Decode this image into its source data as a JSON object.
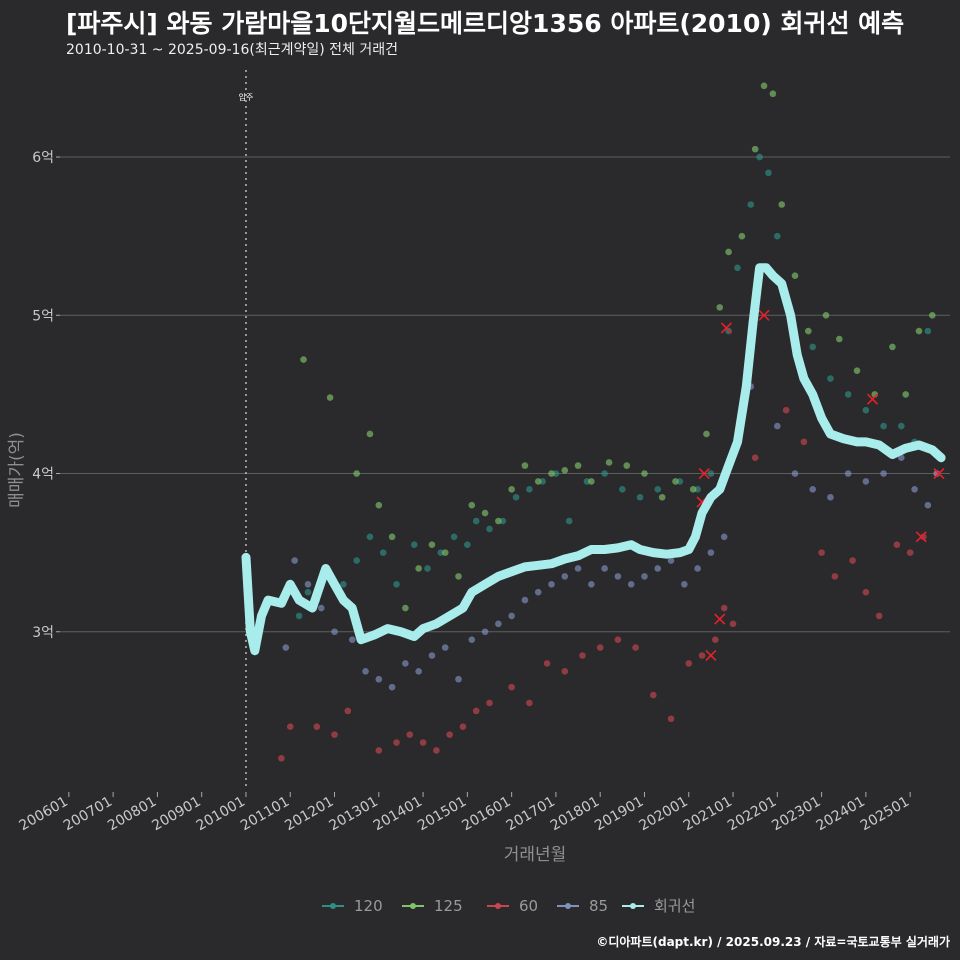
{
  "title": "[파주시] 와동 가람마을10단지월드메르디앙1356 아파트(2010) 회귀선 예측",
  "subtitle": "2010-10-31 ~ 2025-09-16(최근계약일) 전체 거래건",
  "caption": "©디아파트(dapt.kr) / 2025.09.23 / 자료=국토교통부 실거래가",
  "colors": {
    "background": "#2a2a2c",
    "grid": "#5e5e5e",
    "s120": "#2f8f86",
    "s125": "#7fc36a",
    "s60": "#c8464e",
    "s85": "#7f92be",
    "regression": "#a8ecec",
    "marker_x": "#e8202a"
  },
  "chart_data": {
    "type": "scatter",
    "title": "[파주시] 와동 가람마을10단지월드메르디앙1356 아파트(2010) 회귀선 예측",
    "xlabel": "거래년월",
    "ylabel": "매매가(억)",
    "xlim": [
      2005.8,
      2025.9
    ],
    "ylim": [
      2.0,
      6.55
    ],
    "x_ticks": [
      "200601",
      "200701",
      "200801",
      "200901",
      "201001",
      "201101",
      "201201",
      "201301",
      "201401",
      "201501",
      "201601",
      "201701",
      "201801",
      "201901",
      "202001",
      "202101",
      "202201",
      "202301",
      "202401",
      "202501"
    ],
    "x_tick_values": [
      2006,
      2007,
      2008,
      2009,
      2010,
      2011,
      2012,
      2013,
      2014,
      2015,
      2016,
      2017,
      2018,
      2019,
      2020,
      2021,
      2022,
      2023,
      2024,
      2025
    ],
    "y_ticks": [
      "3억",
      "4억",
      "5억",
      "6억"
    ],
    "y_tick_values": [
      3,
      4,
      5,
      6
    ],
    "vline": {
      "x": 2010.0,
      "label": "입주"
    },
    "legend": [
      "120",
      "125",
      "60",
      "85",
      "회귀선"
    ],
    "series": [
      {
        "name": "120",
        "points": [
          [
            2011.2,
            3.1
          ],
          [
            2011.4,
            3.25
          ],
          [
            2011.6,
            3.2
          ],
          [
            2011.8,
            3.35
          ],
          [
            2012.2,
            3.3
          ],
          [
            2012.5,
            3.45
          ],
          [
            2012.8,
            3.6
          ],
          [
            2013.1,
            3.5
          ],
          [
            2013.4,
            3.3
          ],
          [
            2013.8,
            3.55
          ],
          [
            2014.1,
            3.4
          ],
          [
            2014.4,
            3.5
          ],
          [
            2014.7,
            3.6
          ],
          [
            2015.0,
            3.55
          ],
          [
            2015.2,
            3.7
          ],
          [
            2015.5,
            3.65
          ],
          [
            2015.8,
            3.7
          ],
          [
            2016.1,
            3.85
          ],
          [
            2016.4,
            3.9
          ],
          [
            2016.7,
            3.95
          ],
          [
            2017.0,
            4.0
          ],
          [
            2017.3,
            3.7
          ],
          [
            2017.7,
            3.95
          ],
          [
            2018.1,
            4.0
          ],
          [
            2018.5,
            3.9
          ],
          [
            2018.9,
            3.85
          ],
          [
            2019.3,
            3.9
          ],
          [
            2019.8,
            3.95
          ],
          [
            2020.2,
            3.9
          ],
          [
            2020.5,
            4.0
          ],
          [
            2020.9,
            4.9
          ],
          [
            2021.1,
            5.3
          ],
          [
            2021.4,
            5.7
          ],
          [
            2021.6,
            6.0
          ],
          [
            2021.8,
            5.9
          ],
          [
            2022.0,
            5.5
          ],
          [
            2022.3,
            5.0
          ],
          [
            2022.8,
            4.8
          ],
          [
            2023.2,
            4.6
          ],
          [
            2023.6,
            4.5
          ],
          [
            2024.0,
            4.4
          ],
          [
            2024.4,
            4.3
          ],
          [
            2024.8,
            4.3
          ],
          [
            2025.1,
            4.2
          ],
          [
            2025.4,
            4.9
          ]
        ]
      },
      {
        "name": "125",
        "points": [
          [
            2011.3,
            4.72
          ],
          [
            2011.9,
            4.48
          ],
          [
            2012.5,
            4.0
          ],
          [
            2012.8,
            4.25
          ],
          [
            2013.0,
            3.8
          ],
          [
            2013.3,
            3.6
          ],
          [
            2013.6,
            3.15
          ],
          [
            2013.9,
            3.4
          ],
          [
            2014.2,
            3.55
          ],
          [
            2014.5,
            3.5
          ],
          [
            2014.8,
            3.35
          ],
          [
            2015.1,
            3.8
          ],
          [
            2015.4,
            3.75
          ],
          [
            2015.7,
            3.7
          ],
          [
            2016.0,
            3.9
          ],
          [
            2016.3,
            4.05
          ],
          [
            2016.6,
            3.95
          ],
          [
            2016.9,
            4.0
          ],
          [
            2017.2,
            4.02
          ],
          [
            2017.5,
            4.05
          ],
          [
            2017.8,
            3.95
          ],
          [
            2018.2,
            4.07
          ],
          [
            2018.6,
            4.05
          ],
          [
            2019.0,
            4.0
          ],
          [
            2019.4,
            3.85
          ],
          [
            2019.7,
            3.95
          ],
          [
            2020.1,
            3.9
          ],
          [
            2020.4,
            4.25
          ],
          [
            2020.7,
            5.05
          ],
          [
            2020.9,
            5.4
          ],
          [
            2021.2,
            5.5
          ],
          [
            2021.5,
            6.05
          ],
          [
            2021.7,
            6.45
          ],
          [
            2021.9,
            6.4
          ],
          [
            2022.1,
            5.7
          ],
          [
            2022.4,
            5.25
          ],
          [
            2022.7,
            4.9
          ],
          [
            2023.1,
            5.0
          ],
          [
            2023.4,
            4.85
          ],
          [
            2023.8,
            4.65
          ],
          [
            2024.2,
            4.5
          ],
          [
            2024.6,
            4.8
          ],
          [
            2024.9,
            4.5
          ],
          [
            2025.2,
            4.9
          ],
          [
            2025.5,
            5.0
          ]
        ]
      },
      {
        "name": "60",
        "points": [
          [
            2010.8,
            2.2
          ],
          [
            2011.0,
            2.4
          ],
          [
            2011.6,
            2.4
          ],
          [
            2012.0,
            2.35
          ],
          [
            2012.3,
            2.5
          ],
          [
            2013.0,
            2.25
          ],
          [
            2013.4,
            2.3
          ],
          [
            2013.7,
            2.35
          ],
          [
            2014.0,
            2.3
          ],
          [
            2014.3,
            2.25
          ],
          [
            2014.6,
            2.35
          ],
          [
            2014.9,
            2.4
          ],
          [
            2015.2,
            2.5
          ],
          [
            2015.5,
            2.55
          ],
          [
            2016.0,
            2.65
          ],
          [
            2016.4,
            2.55
          ],
          [
            2016.8,
            2.8
          ],
          [
            2017.2,
            2.75
          ],
          [
            2017.6,
            2.85
          ],
          [
            2018.0,
            2.9
          ],
          [
            2018.4,
            2.95
          ],
          [
            2018.8,
            2.9
          ],
          [
            2019.2,
            2.6
          ],
          [
            2019.6,
            2.45
          ],
          [
            2020.0,
            2.8
          ],
          [
            2020.3,
            2.85
          ],
          [
            2020.6,
            2.95
          ],
          [
            2020.8,
            3.15
          ],
          [
            2021.0,
            3.05
          ],
          [
            2021.5,
            4.1
          ],
          [
            2022.2,
            4.4
          ],
          [
            2022.6,
            4.2
          ],
          [
            2023.0,
            3.5
          ],
          [
            2023.3,
            3.35
          ],
          [
            2023.7,
            3.45
          ],
          [
            2024.0,
            3.25
          ],
          [
            2024.3,
            3.1
          ],
          [
            2024.7,
            3.55
          ],
          [
            2025.0,
            3.5
          ],
          [
            2025.3,
            3.6
          ],
          [
            2025.6,
            4.0
          ]
        ]
      },
      {
        "name": "85",
        "points": [
          [
            2010.9,
            2.9
          ],
          [
            2011.1,
            3.45
          ],
          [
            2011.4,
            3.3
          ],
          [
            2011.7,
            3.15
          ],
          [
            2012.0,
            3.0
          ],
          [
            2012.4,
            2.95
          ],
          [
            2012.7,
            2.75
          ],
          [
            2013.0,
            2.7
          ],
          [
            2013.3,
            2.65
          ],
          [
            2013.6,
            2.8
          ],
          [
            2013.9,
            2.75
          ],
          [
            2014.2,
            2.85
          ],
          [
            2014.5,
            2.9
          ],
          [
            2014.8,
            2.7
          ],
          [
            2015.1,
            2.95
          ],
          [
            2015.4,
            3.0
          ],
          [
            2015.7,
            3.05
          ],
          [
            2016.0,
            3.1
          ],
          [
            2016.3,
            3.2
          ],
          [
            2016.6,
            3.25
          ],
          [
            2016.9,
            3.3
          ],
          [
            2017.2,
            3.35
          ],
          [
            2017.5,
            3.4
          ],
          [
            2017.8,
            3.3
          ],
          [
            2018.1,
            3.4
          ],
          [
            2018.4,
            3.35
          ],
          [
            2018.7,
            3.3
          ],
          [
            2019.0,
            3.35
          ],
          [
            2019.3,
            3.4
          ],
          [
            2019.6,
            3.45
          ],
          [
            2019.9,
            3.3
          ],
          [
            2020.2,
            3.4
          ],
          [
            2020.5,
            3.5
          ],
          [
            2020.8,
            3.6
          ],
          [
            2021.1,
            4.2
          ],
          [
            2021.4,
            4.55
          ],
          [
            2022.0,
            4.3
          ],
          [
            2022.4,
            4.0
          ],
          [
            2022.8,
            3.9
          ],
          [
            2023.2,
            3.85
          ],
          [
            2023.6,
            4.0
          ],
          [
            2024.0,
            3.95
          ],
          [
            2024.4,
            4.0
          ],
          [
            2024.8,
            4.1
          ],
          [
            2025.1,
            3.9
          ],
          [
            2025.4,
            3.8
          ],
          [
            2025.6,
            4.0
          ]
        ]
      },
      {
        "name": "회귀선",
        "points": [
          [
            2010.0,
            3.47
          ],
          [
            2010.1,
            3.0
          ],
          [
            2010.2,
            2.88
          ],
          [
            2010.35,
            3.1
          ],
          [
            2010.5,
            3.2
          ],
          [
            2010.8,
            3.18
          ],
          [
            2011.0,
            3.3
          ],
          [
            2011.2,
            3.2
          ],
          [
            2011.5,
            3.15
          ],
          [
            2011.8,
            3.4
          ],
          [
            2012.0,
            3.3
          ],
          [
            2012.2,
            3.2
          ],
          [
            2012.4,
            3.15
          ],
          [
            2012.6,
            2.95
          ],
          [
            2012.9,
            2.98
          ],
          [
            2013.2,
            3.02
          ],
          [
            2013.5,
            3.0
          ],
          [
            2013.8,
            2.97
          ],
          [
            2014.0,
            3.02
          ],
          [
            2014.3,
            3.05
          ],
          [
            2014.6,
            3.1
          ],
          [
            2014.9,
            3.15
          ],
          [
            2015.1,
            3.25
          ],
          [
            2015.4,
            3.3
          ],
          [
            2015.7,
            3.35
          ],
          [
            2016.0,
            3.38
          ],
          [
            2016.3,
            3.41
          ],
          [
            2016.6,
            3.42
          ],
          [
            2016.9,
            3.43
          ],
          [
            2017.2,
            3.46
          ],
          [
            2017.5,
            3.48
          ],
          [
            2017.8,
            3.52
          ],
          [
            2018.1,
            3.52
          ],
          [
            2018.4,
            3.53
          ],
          [
            2018.7,
            3.55
          ],
          [
            2018.9,
            3.52
          ],
          [
            2019.2,
            3.5
          ],
          [
            2019.5,
            3.49
          ],
          [
            2019.8,
            3.5
          ],
          [
            2020.0,
            3.52
          ],
          [
            2020.15,
            3.6
          ],
          [
            2020.3,
            3.75
          ],
          [
            2020.5,
            3.85
          ],
          [
            2020.7,
            3.9
          ],
          [
            2020.9,
            4.05
          ],
          [
            2021.1,
            4.2
          ],
          [
            2021.3,
            4.55
          ],
          [
            2021.45,
            4.95
          ],
          [
            2021.6,
            5.3
          ],
          [
            2021.75,
            5.3
          ],
          [
            2021.9,
            5.25
          ],
          [
            2022.1,
            5.2
          ],
          [
            2022.3,
            5.0
          ],
          [
            2022.45,
            4.75
          ],
          [
            2022.6,
            4.6
          ],
          [
            2022.8,
            4.5
          ],
          [
            2023.0,
            4.35
          ],
          [
            2023.2,
            4.25
          ],
          [
            2023.5,
            4.22
          ],
          [
            2023.8,
            4.2
          ],
          [
            2024.0,
            4.2
          ],
          [
            2024.3,
            4.18
          ],
          [
            2024.6,
            4.12
          ],
          [
            2024.9,
            4.16
          ],
          [
            2025.2,
            4.18
          ],
          [
            2025.5,
            4.15
          ],
          [
            2025.7,
            4.1
          ]
        ]
      }
    ],
    "highlight_x_markers": [
      [
        2020.3,
        3.82
      ],
      [
        2020.35,
        4.0
      ],
      [
        2020.5,
        2.85
      ],
      [
        2020.7,
        3.08
      ],
      [
        2020.85,
        4.92
      ],
      [
        2021.7,
        5.0
      ],
      [
        2024.15,
        4.47
      ],
      [
        2025.25,
        3.6
      ],
      [
        2025.65,
        4.0
      ]
    ]
  }
}
